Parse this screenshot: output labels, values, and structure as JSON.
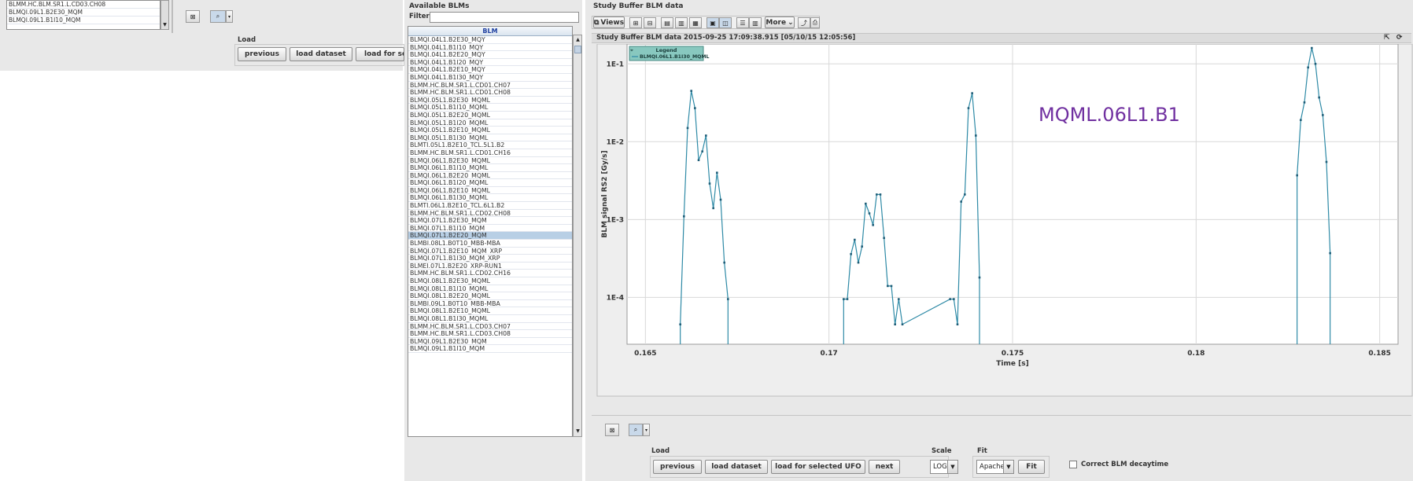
{
  "left_panel": {
    "list_items": [
      "BLMM.HC.BLM.SR1.L.CD03.CH08",
      "BLMQI.09L1.B2E30_MQM",
      "BLMQI.09L1.B1I10_MQM"
    ],
    "load_title": "Load",
    "buttons": {
      "previous": "previous",
      "load_dataset": "load dataset",
      "load_for_selected": "load for sel"
    }
  },
  "available_blms": {
    "title": "Available BLMs",
    "filter_label": "Filter:",
    "filter_value": "",
    "column_header": "BLM",
    "selected_index": 26,
    "items": [
      "BLMQI.04L1.B2E30_MQY",
      "BLMQI.04L1.B1I10_MQY",
      "BLMQI.04L1.B2E20_MQY",
      "BLMQI.04L1.B1I20_MQY",
      "BLMQI.04L1.B2E10_MQY",
      "BLMQI.04L1.B1I30_MQY",
      "BLMM.HC.BLM.SR1.L.CD01.CH07",
      "BLMM.HC.BLM.SR1.L.CD01.CH08",
      "BLMQI.05L1.B2E30_MQML",
      "BLMQI.05L1.B1I10_MQML",
      "BLMQI.05L1.B2E20_MQML",
      "BLMQI.05L1.B1I20_MQML",
      "BLMQI.05L1.B2E10_MQML",
      "BLMQI.05L1.B1I30_MQML",
      "BLMTI.05L1.B2E10_TCL.5L1.B2",
      "BLMM.HC.BLM.SR1.L.CD01.CH16",
      "BLMQI.06L1.B2E30_MQML",
      "BLMQI.06L1.B1I10_MQML",
      "BLMQI.06L1.B2E20_MQML",
      "BLMQI.06L1.B1I20_MQML",
      "BLMQI.06L1.B2E10_MQML",
      "BLMQI.06L1.B1I30_MQML",
      "BLMTI.06L1.B2E10_TCL.6L1.B2",
      "BLMM.HC.BLM.SR1.L.CD02.CH08",
      "BLMQI.07L1.B2E30_MQM",
      "BLMQI.07L1.B1I10_MQM",
      "BLMQI.07L1.B2E20_MQM",
      "BLMBI.08L1.B0T10_MBB-MBA",
      "BLMQI.07L1.B2E10_MQM_XRP",
      "BLMQI.07L1.B1I30_MQM_XRP",
      "BLMEI.07L1.B2E20_XRP-RUN1",
      "BLMM.HC.BLM.SR1.L.CD02.CH16",
      "BLMQI.08L1.B2E30_MQML",
      "BLMQI.08L1.B1I10_MQML",
      "BLMQI.08L1.B2E20_MQML",
      "BLMBI.09L1.B0T10_MBB-MBA",
      "BLMQI.08L1.B2E10_MQML",
      "BLMQI.08L1.B1I30_MQML",
      "BLMM.HC.BLM.SR1.L.CD03.CH07",
      "BLMM.HC.BLM.SR1.L.CD03.CH08",
      "BLMQI.09L1.B2E30_MQM",
      "BLMQI.09L1.B1I10_MQM"
    ]
  },
  "study_panel": {
    "title": "Study Buffer BLM data",
    "toolbar": {
      "views": "Views",
      "more": "More"
    },
    "chart_title": "Study Buffer BLM data 2015-09-25 17:09:38.915  [05/10/15 12:05:56]",
    "load_title": "Load",
    "buttons": {
      "previous": "previous",
      "load_dataset": "load dataset",
      "load_for_selected_ufo": "load for selected UFO",
      "next": "next"
    },
    "scale": {
      "label": "Scale",
      "value": "LOG"
    },
    "fit": {
      "label": "Fit",
      "value": "Apache",
      "button": "Fit"
    },
    "correct_decay": {
      "label": "Correct BLM decaytime",
      "checked": false
    }
  },
  "annotation_text": "MQML.06L1.B1",
  "colors": {
    "series": "#2e8aa6",
    "annotation": "#7030a0",
    "legend_bg": "#88c8bf",
    "grid": "#d8d8d8"
  },
  "chart_data": {
    "type": "line",
    "title": "Study Buffer BLM data 2015-09-25 17:09:38.915  [05/10/15 12:05:56]",
    "xlabel": "Time [s]",
    "ylabel": "BLM signal RS2 [Gy/s]",
    "xlim": [
      0.1645,
      0.1855
    ],
    "ylim": [
      2.5e-05,
      0.18
    ],
    "yscale": "log",
    "xticks": [
      0.165,
      0.17,
      0.175,
      0.18,
      0.185
    ],
    "xtick_labels": [
      "0.165",
      "0.17",
      "0.175",
      "0.18",
      "0.185"
    ],
    "yticks": [
      0.0001,
      0.001,
      0.01,
      0.1
    ],
    "ytick_labels": [
      "1E-4",
      "1E-3",
      "1E-2",
      "1E-1"
    ],
    "grid": true,
    "legend": {
      "title": "Legend",
      "placement": "top-left"
    },
    "series": [
      {
        "name": "BLMQI.06L1.B1I30_MQML",
        "x": [
          0.16595,
          0.16605,
          0.16615,
          0.16625,
          0.16635,
          0.16645,
          0.16655,
          0.16665,
          0.16675,
          0.16685,
          0.16695,
          0.16705,
          0.16715,
          0.16725,
          0.16735,
          0.1704,
          0.1705,
          0.1706,
          0.1707,
          0.1708,
          0.1709,
          0.171,
          0.1711,
          0.1712,
          0.1713,
          0.1714,
          0.1715,
          0.1716,
          0.1717,
          0.1718,
          0.1719,
          0.172,
          0.1733,
          0.1734,
          0.1735,
          0.1736,
          0.1737,
          0.1738,
          0.1739,
          0.174,
          0.1741,
          0.1742,
          0.18275,
          0.18285,
          0.18295,
          0.18305,
          0.18315,
          0.18325,
          0.18335,
          0.18345,
          0.18355,
          0.18365
        ],
        "y": [
          4.5e-05,
          0.0011,
          0.015,
          0.045,
          0.027,
          0.0058,
          0.0075,
          0.012,
          0.0029,
          0.0014,
          0.004,
          0.0018,
          0.00028,
          9.5e-05,
          null,
          9.5e-05,
          9.5e-05,
          0.00036,
          0.00055,
          0.00028,
          0.00045,
          0.0016,
          0.0012,
          0.00085,
          0.0021,
          0.0021,
          0.00058,
          0.00014,
          0.00014,
          4.5e-05,
          9.5e-05,
          4.5e-05,
          9.5e-05,
          9.5e-05,
          4.5e-05,
          0.0017,
          0.0021,
          0.027,
          0.042,
          0.012,
          0.00018,
          null,
          0.0037,
          0.019,
          0.032,
          0.09,
          0.16,
          0.1,
          0.037,
          0.022,
          0.0055,
          0.00037
        ]
      }
    ]
  }
}
